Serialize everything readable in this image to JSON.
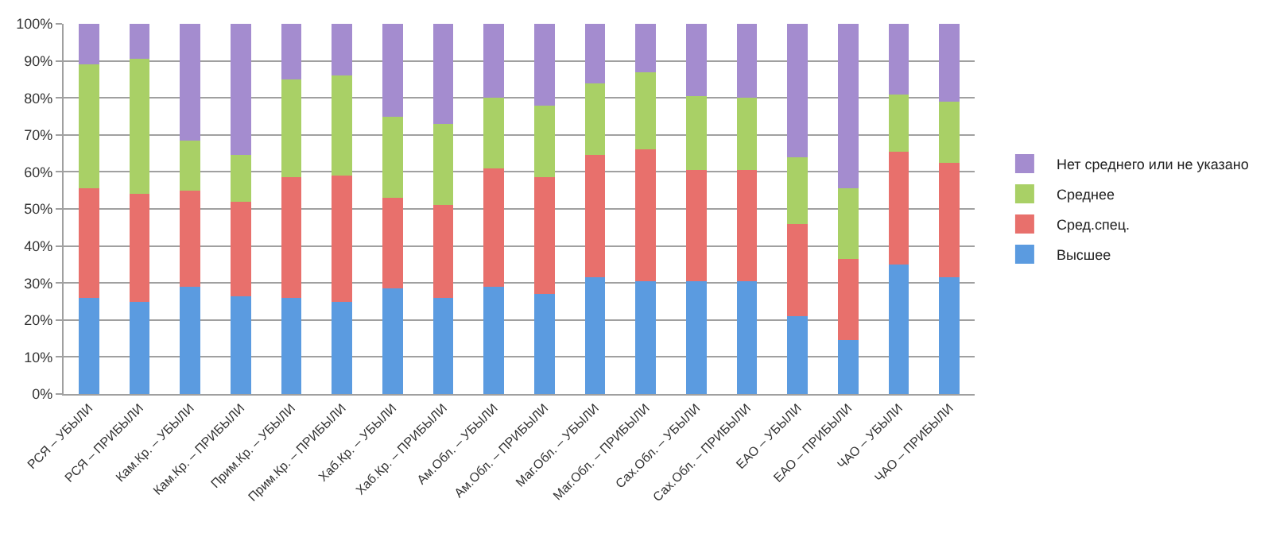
{
  "chart_data": {
    "type": "bar",
    "stacked": true,
    "categories": [
      "РСЯ – УБЫЛИ",
      "РСЯ – ПРИБЫЛИ",
      "Кам.Кр. – УБЫЛИ",
      "Кам.Кр. – ПРИБЫЛИ",
      "Прим.Кр. – УБЫЛИ",
      "Прим.Кр. – ПРИБЫЛИ",
      "Хаб.Кр. – УБЫЛИ",
      "Хаб.Кр. – ПРИБЫЛИ",
      "Ам.Обл. – УБЫЛИ",
      "Ам.Обл. – ПРИБЫЛИ",
      "Маг.Обл. – УБЫЛИ",
      "Маг.Обл. – ПРИБЫЛИ",
      "Сах.Обл. – УБЫЛИ",
      "Сах.Обл. – ПРИБЫЛИ",
      "ЕАО – УБЫЛИ",
      "ЕАО – ПРИБЫЛИ",
      "ЧАО – УБЫЛИ",
      "ЧАО – ПРИБЫЛИ"
    ],
    "series": [
      {
        "name": "Высшее",
        "color": "#5b9be0",
        "values": [
          26,
          25,
          29,
          26.5,
          26,
          25,
          28.5,
          26,
          29,
          27,
          31.5,
          30.5,
          30.5,
          30.5,
          21,
          14.5,
          35,
          31.5
        ]
      },
      {
        "name": "Сред.спец.",
        "color": "#e8706c",
        "values": [
          29.5,
          29,
          26,
          25.5,
          32.5,
          34,
          24.5,
          25,
          32,
          31.5,
          33,
          35.5,
          30,
          30,
          25,
          22,
          30.5,
          31
        ]
      },
      {
        "name": "Среднее",
        "color": "#a9d066",
        "values": [
          33.5,
          36.5,
          13.5,
          12.5,
          26.5,
          27,
          22,
          22,
          19,
          19.5,
          19.5,
          21,
          20,
          19.5,
          18,
          19,
          15.5,
          16.5
        ]
      },
      {
        "name": "Нет среднего или не указано",
        "color": "#a48ccf",
        "values": [
          11,
          9.5,
          31.5,
          35.5,
          15,
          14,
          25,
          27,
          20,
          22,
          16,
          13,
          19.5,
          20,
          36,
          44.5,
          19,
          21
        ]
      }
    ],
    "ylim": [
      0,
      100
    ],
    "yticks": [
      {
        "value": 0,
        "label": "0%"
      },
      {
        "value": 10,
        "label": "10%"
      },
      {
        "value": 20,
        "label": "20%"
      },
      {
        "value": 30,
        "label": "30%"
      },
      {
        "value": 40,
        "label": "40%"
      },
      {
        "value": 50,
        "label": "50%"
      },
      {
        "value": 60,
        "label": "60%"
      },
      {
        "value": 70,
        "label": "70%"
      },
      {
        "value": 80,
        "label": "80%"
      },
      {
        "value": 90,
        "label": "90%"
      },
      {
        "value": 100,
        "label": "100%"
      }
    ],
    "grid": "y",
    "legend": "right"
  }
}
